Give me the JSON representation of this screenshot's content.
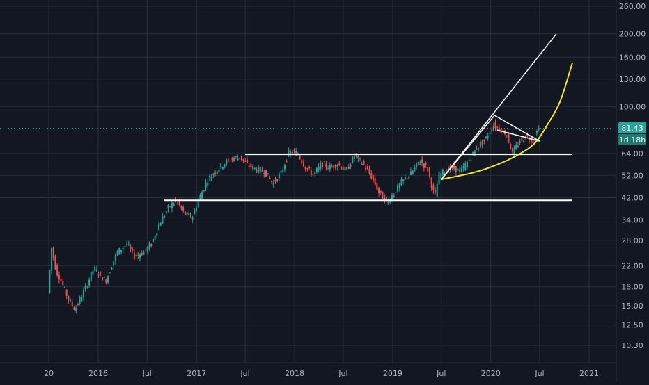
{
  "chart_data": {
    "type": "candlestick",
    "scale": "log",
    "grid": true,
    "y_ticks": [
      "260.00",
      "200.00",
      "160.00",
      "130.00",
      "100.00",
      "81.43",
      "64.00",
      "52.00",
      "42.00",
      "34.00",
      "28.00",
      "22.00",
      "18.00",
      "15.00",
      "12.50",
      "10.30"
    ],
    "y_tick_values": [
      260,
      200,
      160,
      130,
      100,
      81.43,
      64,
      52,
      42,
      34,
      28,
      22,
      18,
      15,
      12.5,
      10.3
    ],
    "x_ticks": [
      "20",
      "2016",
      "Jul",
      "2017",
      "Jul",
      "2018",
      "Jul",
      "2019",
      "Jul",
      "2020",
      "Jul",
      "2021"
    ],
    "x_tick_dates": [
      "2015-07-01",
      "2016-01-01",
      "2016-07-01",
      "2017-01-01",
      "2017-07-01",
      "2018-01-01",
      "2018-07-01",
      "2019-01-01",
      "2019-07-01",
      "2020-01-01",
      "2020-07-01",
      "2021-01-01"
    ],
    "last_price": 81.43,
    "countdown": "1d 18h",
    "colors": {
      "up": "#26a69a",
      "down": "#ef5350",
      "background": "#131722",
      "grid": "#2a2e39",
      "drawing": "#ffffff",
      "curve": "#f5e72a"
    },
    "price_path": [
      [
        "2015-07-01",
        17
      ],
      [
        "2015-07-15",
        26
      ],
      [
        "2015-08-01",
        21
      ],
      [
        "2015-08-20",
        19
      ],
      [
        "2015-09-15",
        16
      ],
      [
        "2015-10-10",
        14.5
      ],
      [
        "2015-11-15",
        17.5
      ],
      [
        "2015-12-20",
        21.5
      ],
      [
        "2016-02-01",
        19
      ],
      [
        "2016-03-15",
        25
      ],
      [
        "2016-04-20",
        27
      ],
      [
        "2016-05-20",
        24
      ],
      [
        "2016-06-20",
        25
      ],
      [
        "2016-07-20",
        27
      ],
      [
        "2016-08-20",
        33
      ],
      [
        "2016-09-20",
        38
      ],
      [
        "2016-10-20",
        41
      ],
      [
        "2016-11-20",
        36
      ],
      [
        "2016-12-20",
        35
      ],
      [
        "2017-01-15",
        42
      ],
      [
        "2017-02-15",
        50
      ],
      [
        "2017-03-15",
        54
      ],
      [
        "2017-04-15",
        58
      ],
      [
        "2017-05-15",
        61
      ],
      [
        "2017-06-15",
        62
      ],
      [
        "2017-07-15",
        57
      ],
      [
        "2017-08-15",
        55
      ],
      [
        "2017-09-15",
        54
      ],
      [
        "2017-10-15",
        48
      ],
      [
        "2017-11-15",
        53
      ],
      [
        "2017-12-15",
        65
      ],
      [
        "2018-01-15",
        64
      ],
      [
        "2018-02-15",
        56
      ],
      [
        "2018-03-15",
        52
      ],
      [
        "2018-04-15",
        58
      ],
      [
        "2018-05-15",
        56
      ],
      [
        "2018-06-15",
        58
      ],
      [
        "2018-07-15",
        54
      ],
      [
        "2018-08-15",
        63
      ],
      [
        "2018-09-15",
        58
      ],
      [
        "2018-10-15",
        52
      ],
      [
        "2018-11-15",
        44
      ],
      [
        "2018-12-15",
        40
      ],
      [
        "2019-01-15",
        45
      ],
      [
        "2019-02-15",
        50
      ],
      [
        "2019-03-15",
        53
      ],
      [
        "2019-04-15",
        60
      ],
      [
        "2019-05-15",
        55
      ],
      [
        "2019-06-10",
        42
      ],
      [
        "2019-06-25",
        52
      ],
      [
        "2019-07-15",
        54
      ],
      [
        "2019-08-15",
        56
      ],
      [
        "2019-09-15",
        54
      ],
      [
        "2019-10-15",
        60
      ],
      [
        "2019-11-15",
        68
      ],
      [
        "2019-12-15",
        73
      ],
      [
        "2020-01-15",
        84
      ],
      [
        "2020-02-10",
        80
      ],
      [
        "2020-03-01",
        78
      ],
      [
        "2020-03-25",
        64
      ],
      [
        "2020-04-15",
        70
      ],
      [
        "2020-05-15",
        76
      ],
      [
        "2020-06-10",
        72
      ],
      [
        "2020-06-30",
        81.43
      ]
    ],
    "drawings": [
      {
        "type": "hline",
        "price": 63.5,
        "from": "2017-07-01",
        "to": "2020-10-31"
      },
      {
        "type": "hline",
        "price": 41,
        "from": "2016-09-01",
        "to": "2020-10-31"
      },
      {
        "type": "trend",
        "from": [
          "2019-07-01",
          50
        ],
        "to": [
          "2020-09-01",
          200
        ]
      },
      {
        "type": "trend",
        "from": [
          "2019-07-01",
          50
        ],
        "to": [
          "2020-01-15",
          92
        ]
      },
      {
        "type": "trend",
        "from": [
          "2020-01-15",
          92
        ],
        "to": [
          "2020-07-01",
          72
        ]
      },
      {
        "type": "trend",
        "from": [
          "2020-01-25",
          80
        ],
        "to": [
          "2020-07-01",
          72
        ]
      },
      {
        "type": "curve",
        "points": [
          [
            "2019-07-01",
            50
          ],
          [
            "2019-11-01",
            53.5
          ],
          [
            "2020-02-01",
            58
          ],
          [
            "2020-04-15",
            63.5
          ],
          [
            "2020-06-15",
            71
          ],
          [
            "2020-08-01",
            85
          ],
          [
            "2020-09-15",
            105
          ],
          [
            "2020-10-31",
            152
          ]
        ]
      }
    ]
  }
}
